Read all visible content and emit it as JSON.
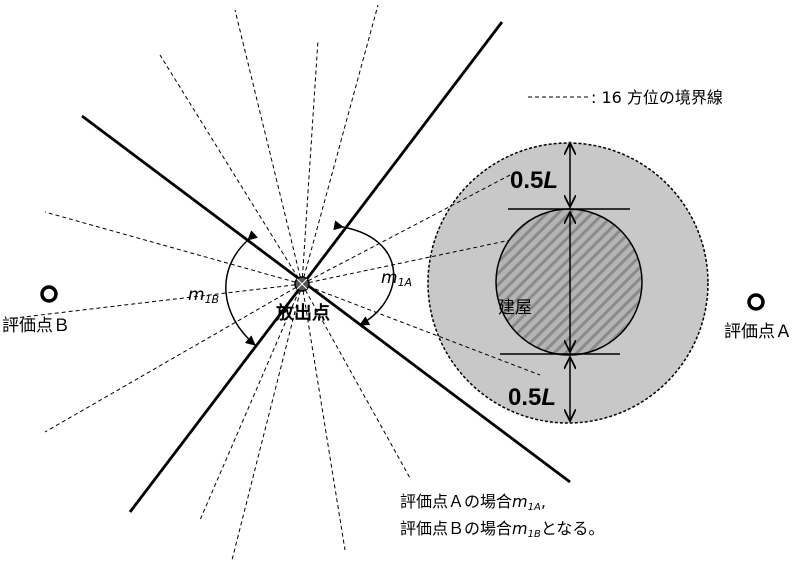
{
  "legend": {
    "label": ": 16 方位の境界線"
  },
  "labels": {
    "release_point": "放出点",
    "building": "建屋",
    "eval_point_a": "評価点Ａ",
    "eval_point_b": "評価点Ｂ",
    "m1a_main": "m",
    "m1a_sub": "1A",
    "m1b_main": "m",
    "m1b_sub": "1B",
    "half_l_top_num": "0.5",
    "half_l_top_var": "L",
    "half_l_bottom_num": "0.5",
    "half_l_bottom_var": "L"
  },
  "note": {
    "line1_prefix": "評価点Ａの場合",
    "line1_var": "m",
    "line1_sub": "1A",
    "line1_suffix": ",",
    "line2_prefix": "評価点Ｂの場合",
    "line2_var": "m",
    "line2_sub": "1B",
    "line2_suffix": "となる。"
  },
  "colors": {
    "outer_circle_fill": "#c8c8c8",
    "hatch_fill": "#b4b4b4",
    "hatch_stripe": "#8a8a8a",
    "line": "#000000"
  }
}
